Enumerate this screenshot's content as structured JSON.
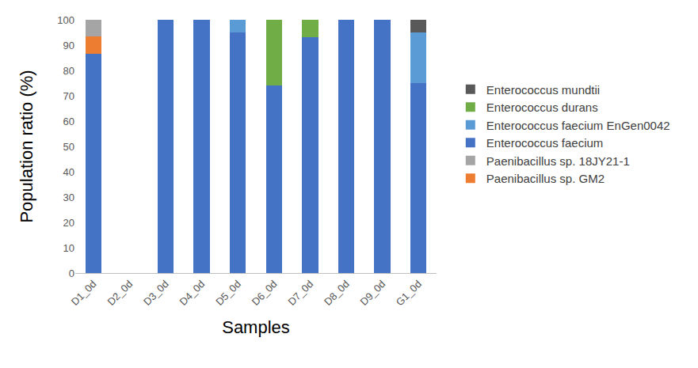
{
  "chart_data": {
    "type": "bar",
    "stacked": true,
    "x_label": "Samples",
    "y_label": "Population ratio (%)",
    "categories": [
      "D1_0d",
      "D2_0d",
      "D3_0d",
      "D4_0d",
      "D5_0d",
      "D6_0d",
      "D7_0d",
      "D8_0d",
      "D9_0d",
      "G1_0d"
    ],
    "series": [
      {
        "name": "Enterococcus faecium",
        "color": "#4472c4",
        "values": [
          86.7,
          0,
          100,
          100,
          95,
          74,
          93,
          100,
          100,
          75
        ]
      },
      {
        "name": "Paenibacillus sp. GM2",
        "color": "#ed7d31",
        "values": [
          6.7,
          0,
          0,
          0,
          0,
          0,
          0,
          0,
          0,
          0
        ]
      },
      {
        "name": "Paenibacillus sp. 18JY21-1",
        "color": "#a5a5a5",
        "values": [
          6.6,
          0,
          0,
          0,
          0,
          0,
          0,
          0,
          0,
          0
        ]
      },
      {
        "name": "Enterococcus faecium EnGen0042",
        "color": "#5b9bd5",
        "values": [
          0,
          0,
          0,
          0,
          5,
          0,
          0,
          0,
          0,
          20
        ]
      },
      {
        "name": "Enterococcus durans",
        "color": "#70ad47",
        "values": [
          0,
          0,
          0,
          0,
          0,
          26,
          7,
          0,
          0,
          0
        ]
      },
      {
        "name": "Enterococcus mundtii",
        "color": "#595959",
        "values": [
          0,
          0,
          0,
          0,
          0,
          0,
          0,
          0,
          0,
          5
        ]
      }
    ],
    "ylim": [
      0,
      100
    ],
    "yticks": [
      0,
      10,
      20,
      30,
      40,
      50,
      60,
      70,
      80,
      90,
      100
    ],
    "grid": false,
    "legend": "right"
  }
}
